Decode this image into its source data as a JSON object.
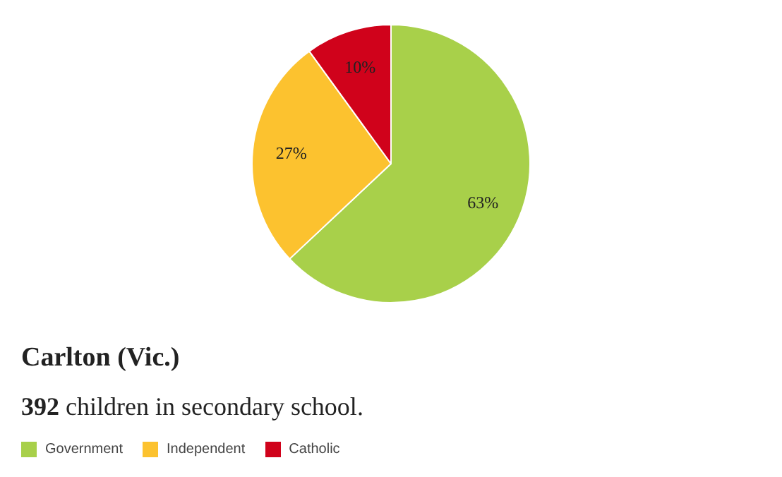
{
  "chart_data": {
    "type": "pie",
    "title": "Carlton (Vic.)",
    "subtitle": "392 children in secondary school.",
    "categories": [
      "Government",
      "Independent",
      "Catholic"
    ],
    "values": [
      63,
      27,
      10
    ],
    "colors": [
      "#a8d04a",
      "#fcc22f",
      "#d0021b"
    ],
    "value_labels": [
      "63%",
      "27%",
      "10%"
    ],
    "legend": "bottom"
  }
}
